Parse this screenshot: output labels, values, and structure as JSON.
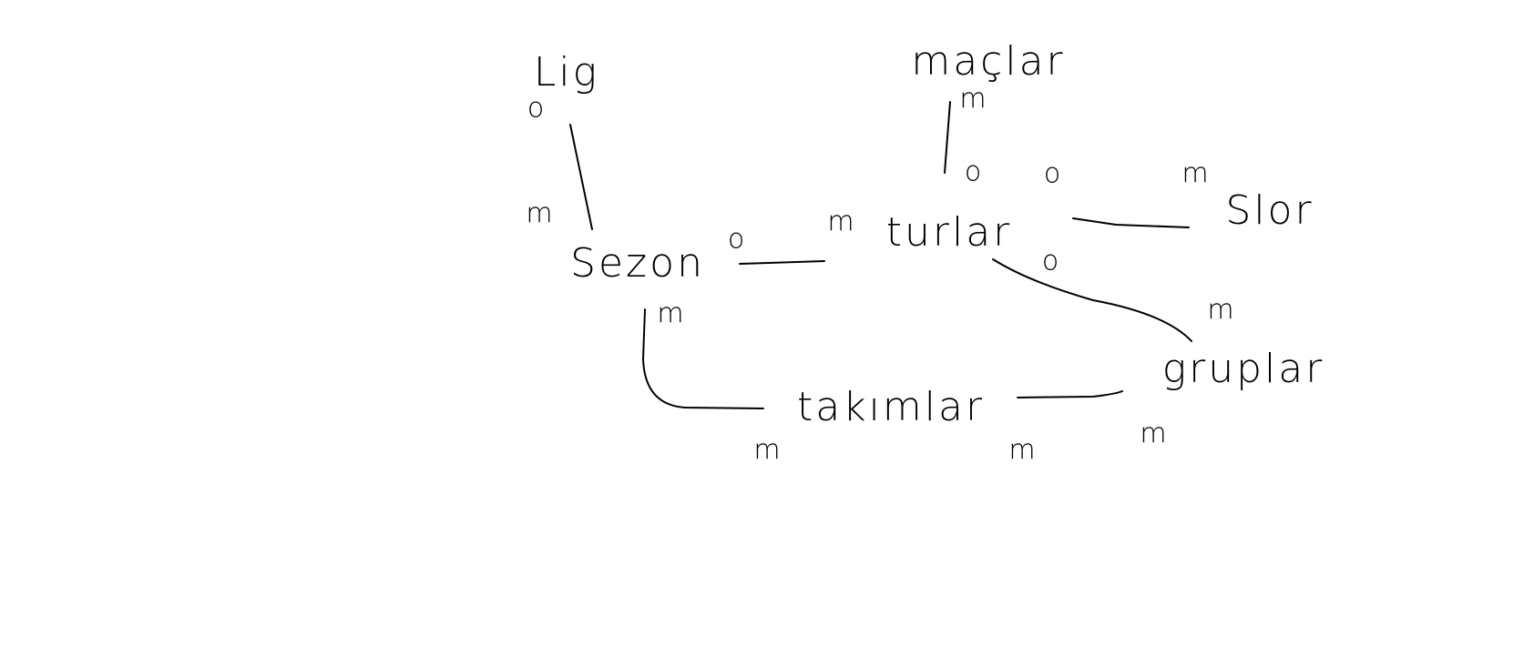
{
  "nodes": [
    {
      "label": "Lig"
    },
    {
      "label": "Sezon"
    },
    {
      "label": "turlar"
    },
    {
      "label": "maçlar"
    },
    {
      "label": "Slor"
    },
    {
      "label": "gruplar"
    },
    {
      "label": "takımlar"
    }
  ],
  "edges": [
    {
      "from_card": "o",
      "to_card": "m"
    },
    {
      "from_card": "o",
      "to_card": "m"
    },
    {
      "from_card": "m",
      "to_card": "m"
    },
    {
      "from_card": "o",
      "to_card": "m"
    },
    {
      "from_card": "o",
      "to_card": "m"
    },
    {
      "from_card": "o",
      "to_card": "m"
    },
    {
      "from_card": "m",
      "to_card": "m"
    }
  ]
}
